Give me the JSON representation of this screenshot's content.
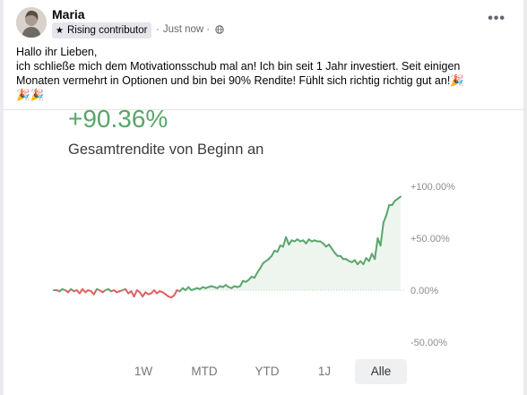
{
  "post": {
    "author": "Maria",
    "badge": "Rising contributor",
    "time": "Just now",
    "separator": "·",
    "more_icon": "more-horizontal-icon",
    "text_lines": [
      "Hallo ihr Lieben,",
      "ich schließe mich dem Motivationsschub mal an! Ich bin seit 1 Jahr investiert. Seit einigen",
      "Monaten vermehrt in Optionen und bin bei 90% Rendite! Fühlt sich richtig richtig gut an!🎉",
      "🎉🎉"
    ]
  },
  "chart": {
    "return_value": "+90.36%",
    "subtitle": "Gesamtrendite von Beginn an",
    "tabs": [
      "1W",
      "MTD",
      "YTD",
      "1J",
      "Alle"
    ],
    "active_tab": "Alle"
  },
  "colors": {
    "positive": "#5aa56c",
    "negative": "#e0605e",
    "fill": "#e8f3ea"
  },
  "chart_data": {
    "type": "line",
    "title": "+90.36%",
    "subtitle": "Gesamtrendite von Beginn an",
    "ylabel": "",
    "xlabel": "",
    "yticks": [
      "+100.00%",
      "+50.00%",
      "0.00%",
      "-50.00%"
    ],
    "ytick_values": [
      100,
      50,
      0,
      -50
    ],
    "ylim": [
      -50,
      100
    ],
    "grid": false,
    "series": [
      {
        "values": [
          0,
          0,
          -1,
          1,
          0,
          -2,
          1,
          -1,
          0,
          -3,
          1,
          -2,
          0,
          -1,
          -4,
          1,
          0,
          -2,
          0,
          1,
          -1,
          0,
          -2,
          -1,
          0,
          1,
          -3,
          -1,
          -6,
          0,
          -2,
          -6,
          -2,
          -4,
          -3,
          0,
          -3,
          -1,
          -2,
          -4,
          -6,
          -7,
          -5,
          0,
          -1,
          2,
          0,
          3,
          0,
          1,
          2,
          1,
          3,
          2,
          3,
          4,
          3,
          2,
          4,
          3,
          5,
          3,
          2,
          4,
          3,
          4,
          9,
          8,
          10,
          13,
          12,
          17,
          21,
          26,
          28,
          30,
          33,
          38,
          37,
          43,
          42,
          51,
          44,
          48,
          47,
          49,
          47,
          48,
          45,
          49,
          47,
          48,
          47,
          47,
          45,
          42,
          44,
          40,
          36,
          33,
          33,
          30,
          30,
          28,
          27,
          29,
          25,
          28,
          25,
          31,
          28,
          35,
          30,
          50,
          43,
          65,
          72,
          82,
          82,
          86,
          88,
          90
        ]
      }
    ]
  }
}
